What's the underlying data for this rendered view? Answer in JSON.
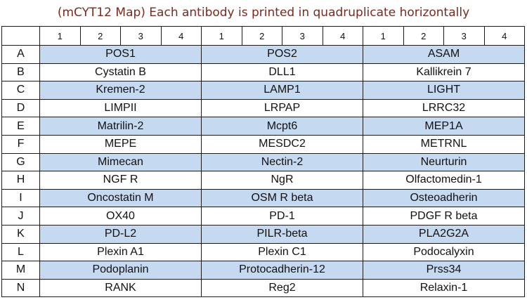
{
  "title": "(mCYT12 Map) Each antibody is printed in quadruplicate horizontally",
  "column_numbers": [
    "1",
    "2",
    "3",
    "4",
    "1",
    "2",
    "3",
    "4",
    "1",
    "2",
    "3",
    "4"
  ],
  "rows": [
    {
      "label": "A",
      "shaded": true,
      "cells": [
        "POS1",
        "POS2",
        "ASAM"
      ]
    },
    {
      "label": "B",
      "shaded": false,
      "cells": [
        "Cystatin B",
        "DLL1",
        "Kallikrein 7"
      ]
    },
    {
      "label": "C",
      "shaded": true,
      "cells": [
        "Kremen-2",
        "LAMP1",
        "LIGHT"
      ]
    },
    {
      "label": "D",
      "shaded": false,
      "cells": [
        "LIMPII",
        "LRPAP",
        "LRRC32"
      ]
    },
    {
      "label": "E",
      "shaded": true,
      "cells": [
        "Matrilin-2",
        "Mcpt6",
        "MEP1A"
      ]
    },
    {
      "label": "F",
      "shaded": false,
      "cells": [
        "MEPE",
        "MESDC2",
        "METRNL"
      ]
    },
    {
      "label": "G",
      "shaded": true,
      "cells": [
        "Mimecan",
        "Nectin-2",
        "Neurturin"
      ]
    },
    {
      "label": "H",
      "shaded": false,
      "cells": [
        "NGF R",
        "NgR",
        "Olfactomedin-1"
      ]
    },
    {
      "label": "I",
      "shaded": true,
      "cells": [
        "Oncostatin M",
        "OSM R beta",
        "Osteoadherin"
      ]
    },
    {
      "label": "J",
      "shaded": false,
      "cells": [
        "OX40",
        "PD-1",
        "PDGF R beta"
      ]
    },
    {
      "label": "K",
      "shaded": true,
      "cells": [
        "PD-L2",
        "PILR-beta",
        "PLA2G2A"
      ]
    },
    {
      "label": "L",
      "shaded": false,
      "cells": [
        "Plexin A1",
        "Plexin C1",
        "Podocalyxin"
      ]
    },
    {
      "label": "M",
      "shaded": true,
      "cells": [
        "Podoplanin",
        "Protocadherin-12",
        "Prss34"
      ]
    },
    {
      "label": "N",
      "shaded": false,
      "cells": [
        "RANK",
        "Reg2",
        "Relaxin-1"
      ]
    }
  ],
  "colors": {
    "shade": "#c5d9f1",
    "title": "#7a2a1f",
    "border": "#1a1a1a"
  }
}
